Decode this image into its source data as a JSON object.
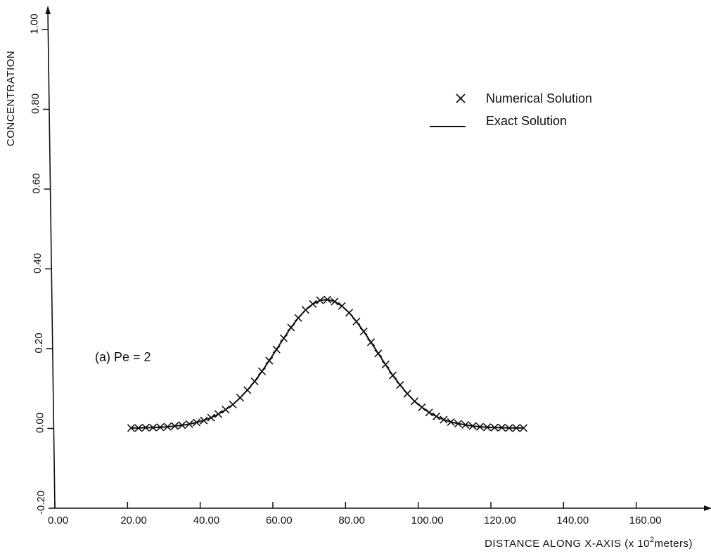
{
  "chart_data": {
    "type": "line",
    "title": "",
    "xlabel": "DISTANCE ALONG X-AXIS (x 10",
    "xlabel_sup": "2",
    "xlabel_suffix": "meters)",
    "ylabel": "CONCENTRATION",
    "xlim": [
      0,
      180
    ],
    "ylim": [
      -0.2,
      1.0
    ],
    "x_ticks": [
      0,
      20,
      40,
      60,
      80,
      100,
      120,
      140,
      160
    ],
    "x_tick_labels": [
      "0.00",
      "20.00",
      "40.00",
      "60.00",
      "80.00",
      "100.00",
      "120.00",
      "140.00",
      "160.00"
    ],
    "y_ticks": [
      -0.2,
      0.0,
      0.2,
      0.4,
      0.6,
      0.8,
      1.0
    ],
    "y_tick_labels": [
      "-0.20",
      "0.00",
      "0.20",
      "0.40",
      "0.60",
      "0.80",
      "1.00"
    ],
    "grid": false,
    "legend_position": "top-right",
    "annotation": "(a) Pe = 2",
    "series": [
      {
        "name": "Numerical Solution",
        "marker": "x",
        "x": [
          21,
          23,
          25,
          27,
          29,
          31,
          33,
          35,
          37,
          39,
          41,
          43,
          45,
          47,
          49,
          51,
          53,
          55,
          57,
          59,
          61,
          63,
          65,
          67,
          69,
          71,
          73,
          75,
          77,
          79,
          81,
          83,
          85,
          87,
          89,
          91,
          93,
          95,
          97,
          99,
          101,
          103,
          105,
          107,
          109,
          111,
          113,
          115,
          117,
          119,
          121,
          123,
          125,
          127,
          129
        ],
        "y": [
          0.001,
          0.001,
          0.002,
          0.002,
          0.003,
          0.004,
          0.006,
          0.008,
          0.011,
          0.015,
          0.02,
          0.027,
          0.036,
          0.047,
          0.06,
          0.077,
          0.096,
          0.118,
          0.143,
          0.17,
          0.198,
          0.226,
          0.253,
          0.277,
          0.297,
          0.312,
          0.321,
          0.323,
          0.318,
          0.307,
          0.29,
          0.268,
          0.243,
          0.216,
          0.188,
          0.16,
          0.133,
          0.109,
          0.087,
          0.068,
          0.053,
          0.04,
          0.03,
          0.022,
          0.016,
          0.012,
          0.009,
          0.006,
          0.004,
          0.003,
          0.002,
          0.002,
          0.001,
          0.001,
          0.001
        ]
      },
      {
        "name": "Exact Solution",
        "marker": "line",
        "x": [
          21,
          23,
          25,
          27,
          29,
          31,
          33,
          35,
          37,
          39,
          41,
          43,
          45,
          47,
          49,
          51,
          53,
          55,
          57,
          59,
          61,
          63,
          65,
          67,
          69,
          71,
          73,
          75,
          77,
          79,
          81,
          83,
          85,
          87,
          89,
          91,
          93,
          95,
          97,
          99,
          101,
          103,
          105,
          107,
          109,
          111,
          113,
          115,
          117,
          119,
          121,
          123,
          125,
          127,
          129
        ],
        "y": [
          0.001,
          0.001,
          0.002,
          0.002,
          0.003,
          0.004,
          0.006,
          0.008,
          0.011,
          0.015,
          0.02,
          0.027,
          0.036,
          0.047,
          0.06,
          0.077,
          0.096,
          0.118,
          0.143,
          0.17,
          0.198,
          0.226,
          0.253,
          0.277,
          0.297,
          0.312,
          0.321,
          0.323,
          0.318,
          0.307,
          0.29,
          0.268,
          0.243,
          0.216,
          0.188,
          0.16,
          0.133,
          0.109,
          0.087,
          0.068,
          0.053,
          0.04,
          0.03,
          0.022,
          0.016,
          0.012,
          0.009,
          0.006,
          0.004,
          0.003,
          0.002,
          0.002,
          0.001,
          0.001,
          0.001
        ]
      }
    ],
    "colors": {
      "ink": "#111111",
      "background": "#ffffff"
    }
  }
}
